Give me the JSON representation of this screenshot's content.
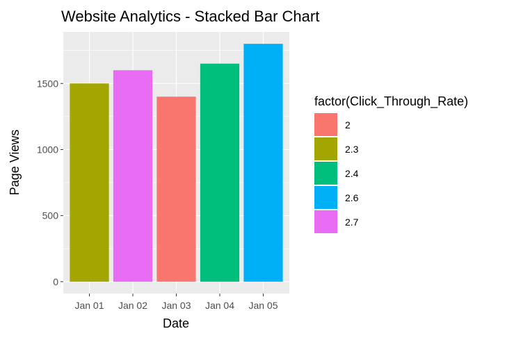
{
  "chart_data": {
    "type": "bar",
    "title": "Website Analytics - Stacked Bar Chart",
    "xlabel": "Date",
    "ylabel": "Page Views",
    "categories": [
      "Jan 01",
      "Jan 02",
      "Jan 03",
      "Jan 04",
      "Jan 05"
    ],
    "values": [
      1500,
      1600,
      1400,
      1650,
      1800
    ],
    "bar_groups": [
      "2.3",
      "2.7",
      "2",
      "2.4",
      "2.6"
    ],
    "ylim": [
      -90,
      1890
    ],
    "yticks": [
      0,
      500,
      1000,
      1500
    ],
    "ytick_labels": [
      "0",
      "500",
      "1000",
      "1500"
    ],
    "grid": true,
    "legend": {
      "title": "factor(Click_Through_Rate)",
      "placement": "right",
      "entries": [
        {
          "label": "2",
          "color": "#F8766D"
        },
        {
          "label": "2.3",
          "color": "#A3A500"
        },
        {
          "label": "2.4",
          "color": "#00BF7D"
        },
        {
          "label": "2.6",
          "color": "#00B0F6"
        },
        {
          "label": "2.7",
          "color": "#E76BF3"
        }
      ]
    },
    "panel_color": "#EBEBEB",
    "grid_color": "#FFFFFF"
  }
}
